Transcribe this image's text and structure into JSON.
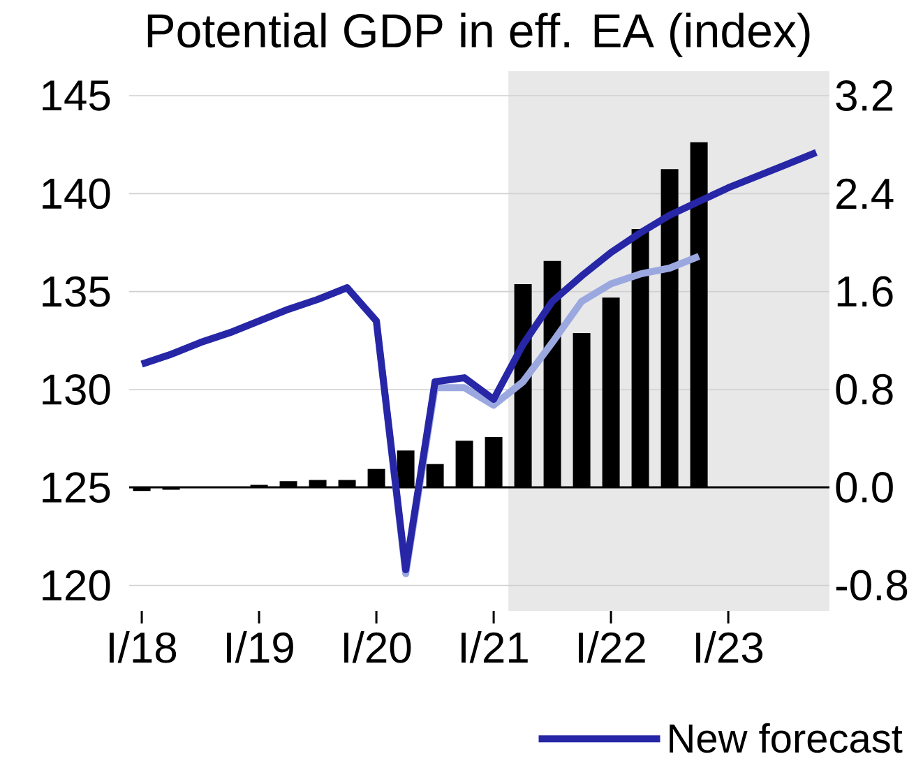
{
  "chart_data": {
    "type": "line",
    "title": "Potential GDP in eff. EA (index)",
    "categories": [
      "I/18",
      null,
      null,
      null,
      "I/19",
      null,
      null,
      null,
      "I/20",
      null,
      null,
      null,
      "I/21",
      null,
      null,
      null,
      "I/22",
      null,
      null,
      null,
      "I/23",
      null,
      null,
      null
    ],
    "series": [
      {
        "type": "bar",
        "axis": "y2",
        "color": "#000000",
        "values": [
          -0.03,
          -0.02,
          0,
          0,
          0.02,
          0.05,
          0.06,
          0.06,
          0.15,
          0.3,
          0.19,
          0.38,
          0.41,
          1.66,
          1.85,
          1.26,
          1.55,
          2.11,
          2.6,
          2.82,
          null,
          null,
          null,
          null
        ]
      },
      {
        "color": "#9ba8e0",
        "values": [
          131.3,
          131.8,
          132.4,
          132.9,
          133.5,
          134.1,
          134.6,
          135.2,
          133.5,
          120.6,
          130.1,
          130.1,
          129.2,
          130.4,
          132.4,
          134.5,
          135.4,
          135.9,
          136.2,
          136.8,
          null,
          null,
          null,
          null
        ]
      },
      {
        "name": "New forecast",
        "color": "#2626a6",
        "values": [
          131.3,
          131.8,
          132.4,
          132.9,
          133.5,
          134.1,
          134.6,
          135.2,
          133.5,
          120.8,
          130.4,
          130.6,
          129.5,
          132.3,
          134.5,
          135.8,
          137.0,
          138.0,
          138.9,
          139.6,
          140.3,
          140.9,
          141.5,
          142.1
        ]
      }
    ],
    "ylim": [
      118.7,
      146.25
    ],
    "yticks": [
      120,
      125,
      130,
      135,
      140,
      145
    ],
    "y2lim": [
      -1.01,
      3.4
    ],
    "y2ticks": [
      {
        "value": -0.8,
        "label": "-0.8"
      },
      {
        "value": 0,
        "label": "0.0"
      },
      {
        "value": 0.8,
        "label": "0.8"
      },
      {
        "value": 1.6,
        "label": "1.6"
      },
      {
        "value": 2.4,
        "label": "2.4"
      },
      {
        "value": 3.2,
        "label": "3.2"
      }
    ],
    "ref_lines": [
      {
        "axis": "y2",
        "value": 0,
        "color": "#000000"
      }
    ],
    "grid": "y",
    "legend": "bottom right"
  }
}
